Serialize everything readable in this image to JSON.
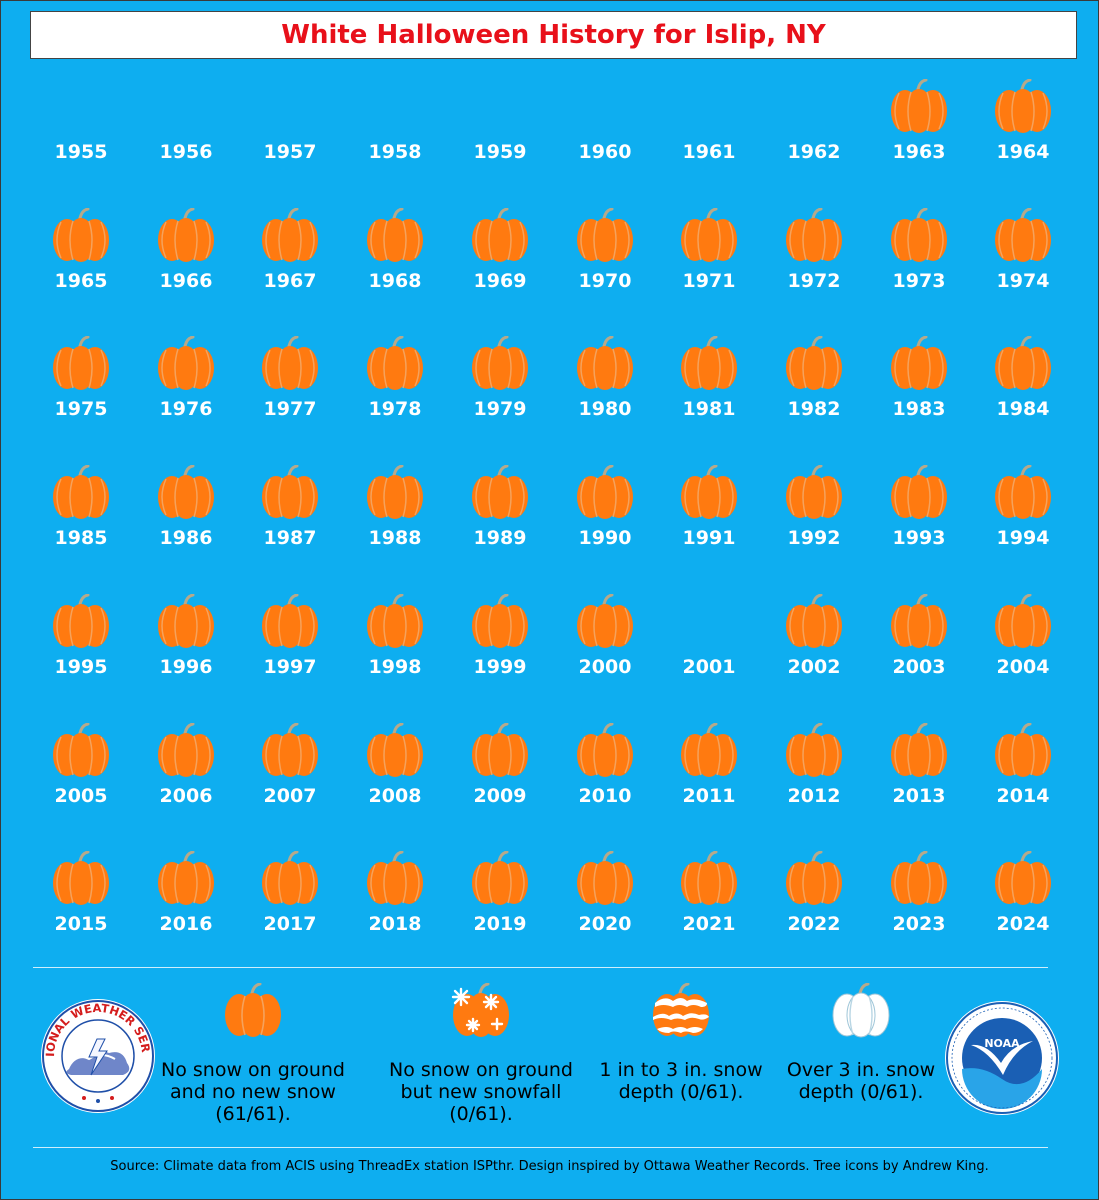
{
  "title": "White Halloween History for Islip, NY",
  "colors": {
    "background": "#0eaef0",
    "title_text": "#e8101a",
    "pumpkin": "#ff7a10",
    "pumpkin_ridge": "#f5a25c",
    "stem": "#b7a98a",
    "year_text": "#ffffff"
  },
  "chart_data": {
    "type": "table",
    "columns": 10,
    "years": [
      {
        "year": "1955",
        "category": "none"
      },
      {
        "year": "1956",
        "category": "none"
      },
      {
        "year": "1957",
        "category": "none"
      },
      {
        "year": "1958",
        "category": "none"
      },
      {
        "year": "1959",
        "category": "none"
      },
      {
        "year": "1960",
        "category": "none"
      },
      {
        "year": "1961",
        "category": "none"
      },
      {
        "year": "1962",
        "category": "none"
      },
      {
        "year": "1963",
        "category": "no_snow"
      },
      {
        "year": "1964",
        "category": "no_snow"
      },
      {
        "year": "1965",
        "category": "no_snow"
      },
      {
        "year": "1966",
        "category": "no_snow"
      },
      {
        "year": "1967",
        "category": "no_snow"
      },
      {
        "year": "1968",
        "category": "no_snow"
      },
      {
        "year": "1969",
        "category": "no_snow"
      },
      {
        "year": "1970",
        "category": "no_snow"
      },
      {
        "year": "1971",
        "category": "no_snow"
      },
      {
        "year": "1972",
        "category": "no_snow"
      },
      {
        "year": "1973",
        "category": "no_snow"
      },
      {
        "year": "1974",
        "category": "no_snow"
      },
      {
        "year": "1975",
        "category": "no_snow"
      },
      {
        "year": "1976",
        "category": "no_snow"
      },
      {
        "year": "1977",
        "category": "no_snow"
      },
      {
        "year": "1978",
        "category": "no_snow"
      },
      {
        "year": "1979",
        "category": "no_snow"
      },
      {
        "year": "1980",
        "category": "no_snow"
      },
      {
        "year": "1981",
        "category": "no_snow"
      },
      {
        "year": "1982",
        "category": "no_snow"
      },
      {
        "year": "1983",
        "category": "no_snow"
      },
      {
        "year": "1984",
        "category": "no_snow"
      },
      {
        "year": "1985",
        "category": "no_snow"
      },
      {
        "year": "1986",
        "category": "no_snow"
      },
      {
        "year": "1987",
        "category": "no_snow"
      },
      {
        "year": "1988",
        "category": "no_snow"
      },
      {
        "year": "1989",
        "category": "no_snow"
      },
      {
        "year": "1990",
        "category": "no_snow"
      },
      {
        "year": "1991",
        "category": "no_snow"
      },
      {
        "year": "1992",
        "category": "no_snow"
      },
      {
        "year": "1993",
        "category": "no_snow"
      },
      {
        "year": "1994",
        "category": "no_snow"
      },
      {
        "year": "1995",
        "category": "no_snow"
      },
      {
        "year": "1996",
        "category": "no_snow"
      },
      {
        "year": "1997",
        "category": "no_snow"
      },
      {
        "year": "1998",
        "category": "no_snow"
      },
      {
        "year": "1999",
        "category": "no_snow"
      },
      {
        "year": "2000",
        "category": "no_snow"
      },
      {
        "year": "2001",
        "category": "none"
      },
      {
        "year": "2002",
        "category": "no_snow"
      },
      {
        "year": "2003",
        "category": "no_snow"
      },
      {
        "year": "2004",
        "category": "no_snow"
      },
      {
        "year": "2005",
        "category": "no_snow"
      },
      {
        "year": "2006",
        "category": "no_snow"
      },
      {
        "year": "2007",
        "category": "no_snow"
      },
      {
        "year": "2008",
        "category": "no_snow"
      },
      {
        "year": "2009",
        "category": "no_snow"
      },
      {
        "year": "2010",
        "category": "no_snow"
      },
      {
        "year": "2011",
        "category": "no_snow"
      },
      {
        "year": "2012",
        "category": "no_snow"
      },
      {
        "year": "2013",
        "category": "no_snow"
      },
      {
        "year": "2014",
        "category": "no_snow"
      },
      {
        "year": "2015",
        "category": "no_snow"
      },
      {
        "year": "2016",
        "category": "no_snow"
      },
      {
        "year": "2017",
        "category": "no_snow"
      },
      {
        "year": "2018",
        "category": "no_snow"
      },
      {
        "year": "2019",
        "category": "no_snow"
      },
      {
        "year": "2020",
        "category": "no_snow"
      },
      {
        "year": "2021",
        "category": "no_snow"
      },
      {
        "year": "2022",
        "category": "no_snow"
      },
      {
        "year": "2023",
        "category": "no_snow"
      },
      {
        "year": "2024",
        "category": "no_snow"
      }
    ],
    "legend": [
      {
        "key": "no_snow",
        "icon": "orange-pumpkin-icon",
        "label": "No snow on ground and no new snow (61/61).",
        "count": 61,
        "total": 61
      },
      {
        "key": "new_snowfall",
        "icon": "snowflake-pumpkin-icon",
        "label": "No snow on ground but new snowfall (0/61).",
        "count": 0,
        "total": 61
      },
      {
        "key": "depth_1_3",
        "icon": "snow-covered-pumpkin-icon",
        "label": "1 in to 3 in. snow depth (0/61).",
        "count": 0,
        "total": 61
      },
      {
        "key": "depth_over_3",
        "icon": "white-pumpkin-icon",
        "label": "Over 3 in. snow depth (0/61).",
        "count": 0,
        "total": 61
      }
    ]
  },
  "source": "Source: Climate data from ACIS using ThreadEx station ISPthr. Design inspired by Ottawa Weather Records. Tree icons by Andrew King.",
  "logos": {
    "nws": {
      "icon": "nws-logo",
      "text": "NATIONAL WEATHER SERVICE"
    },
    "noaa": {
      "icon": "noaa-logo",
      "text": "NOAA"
    }
  }
}
